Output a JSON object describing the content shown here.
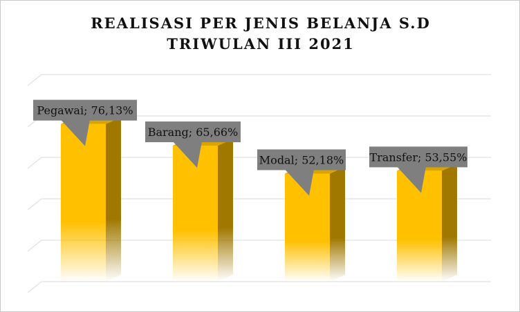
{
  "chart_data": {
    "type": "bar",
    "title_lines": [
      "REALISASI PER JENIS BELANJA S.D",
      "TRIWULAN III 2021"
    ],
    "categories": [
      "Pegawai",
      "Barang",
      "Modal",
      "Transfer"
    ],
    "values": [
      76.13,
      65.66,
      52.18,
      53.55
    ],
    "data_labels": [
      "Pegawai; 76,13%",
      "Barang; 65,66%",
      "Modal; 52,18%",
      "Transfer; 53,55%"
    ],
    "ylim": [
      0,
      100
    ],
    "grid": true,
    "legend": "none",
    "colors": {
      "bar_front": "#FFC000",
      "bar_side": "#A07800",
      "bar_top": "#D9A300",
      "label_box": "#7F7F7F",
      "gridline": "#e6e6e6"
    }
  }
}
